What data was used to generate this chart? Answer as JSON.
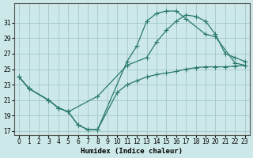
{
  "xlabel": "Humidex (Indice chaleur)",
  "background_color": "#cce8e8",
  "grid_color": "#aacccc",
  "line_color": "#2a7a6a",
  "xlim": [
    -0.5,
    23.5
  ],
  "ylim": [
    16.5,
    33.5
  ],
  "yticks": [
    17,
    19,
    21,
    23,
    25,
    27,
    29,
    31
  ],
  "xticks": [
    0,
    1,
    2,
    3,
    4,
    5,
    6,
    7,
    8,
    9,
    10,
    11,
    12,
    13,
    14,
    15,
    16,
    17,
    18,
    19,
    20,
    21,
    22,
    23
  ],
  "line1_x": [
    0,
    1,
    3,
    4,
    5,
    6,
    7,
    8,
    11,
    12,
    13,
    14,
    15,
    16,
    17,
    19,
    20,
    22,
    23
  ],
  "line1_y": [
    24.0,
    22.5,
    21.0,
    20.0,
    19.5,
    17.8,
    17.2,
    17.2,
    26.0,
    28.0,
    31.2,
    32.2,
    32.5,
    32.5,
    31.5,
    29.5,
    29.2,
    25.8,
    25.5
  ],
  "line2_x": [
    0,
    1,
    3,
    4,
    5,
    8,
    11,
    13,
    14,
    15,
    16,
    17,
    18,
    19,
    20,
    21,
    22,
    23
  ],
  "line2_y": [
    24.0,
    22.5,
    21.0,
    20.0,
    19.5,
    21.5,
    25.5,
    26.5,
    28.5,
    30.0,
    31.2,
    32.0,
    31.8,
    31.2,
    29.5,
    27.0,
    26.5,
    26.0
  ],
  "line3_x": [
    0,
    1,
    3,
    4,
    5,
    6,
    7,
    8,
    10,
    11,
    12,
    13,
    14,
    15,
    16,
    17,
    18,
    19,
    20,
    21,
    22,
    23
  ],
  "line3_y": [
    24.0,
    22.5,
    21.0,
    20.0,
    19.5,
    17.8,
    17.2,
    17.2,
    22.0,
    23.0,
    23.5,
    24.0,
    24.3,
    24.5,
    24.7,
    25.0,
    25.2,
    25.3,
    25.3,
    25.3,
    25.4,
    25.5
  ]
}
